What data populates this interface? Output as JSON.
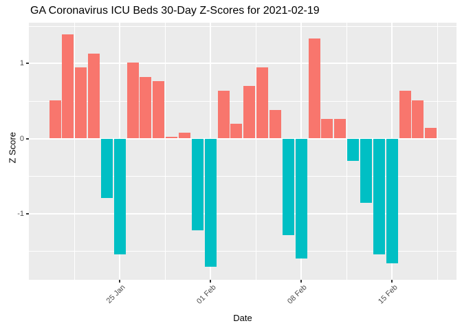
{
  "chart_data": {
    "type": "bar",
    "title": "GA Coronavirus ICU Beds 30-Day Z-Scores for 2021-02-19",
    "xlabel": "Date",
    "ylabel": "Z Score",
    "legend": "none",
    "grid": "major and minor white gridlines on grey panel",
    "ylim": [
      -1.89,
      1.56
    ],
    "y_ticks": [
      -1,
      0,
      1
    ],
    "y_tick_labels": [
      "-1",
      "0",
      "1"
    ],
    "y_minor_ticks": [
      -1.5,
      -0.5,
      0.5,
      1.5
    ],
    "x_tick_labels": [
      "25 Jan",
      "01 Feb",
      "08 Feb",
      "15 Feb"
    ],
    "x_tick_dates": [
      "2021-01-25",
      "2021-02-01",
      "2021-02-08",
      "2021-02-15"
    ],
    "dates": [
      "2021-01-20",
      "2021-01-21",
      "2021-01-22",
      "2021-01-23",
      "2021-01-24",
      "2021-01-25",
      "2021-01-26",
      "2021-01-27",
      "2021-01-28",
      "2021-01-29",
      "2021-01-30",
      "2021-01-31",
      "2021-02-01",
      "2021-02-02",
      "2021-02-03",
      "2021-02-04",
      "2021-02-05",
      "2021-02-06",
      "2021-02-07",
      "2021-02-08",
      "2021-02-09",
      "2021-02-10",
      "2021-02-11",
      "2021-02-12",
      "2021-02-13",
      "2021-02-14",
      "2021-02-15",
      "2021-02-16",
      "2021-02-17",
      "2021-02-18"
    ],
    "values": [
      0.51,
      1.39,
      0.95,
      1.13,
      -0.79,
      -1.54,
      1.01,
      0.82,
      0.76,
      0.02,
      0.08,
      -1.22,
      -1.71,
      0.64,
      0.2,
      0.7,
      0.95,
      0.38,
      -1.29,
      -1.6,
      1.33,
      0.26,
      0.26,
      -0.3,
      -0.86,
      -1.54,
      -1.66,
      0.64,
      0.51,
      0.14
    ],
    "colors": {
      "positive_bar": "#F8766D",
      "negative_bar": "#00BFC4",
      "panel_background": "#EBEBEB",
      "gridline": "#FFFFFF",
      "tick_label": "#4D4D4D",
      "tick_mark": "#333333",
      "text": "#000000",
      "page_background": "#FFFFFF"
    }
  }
}
